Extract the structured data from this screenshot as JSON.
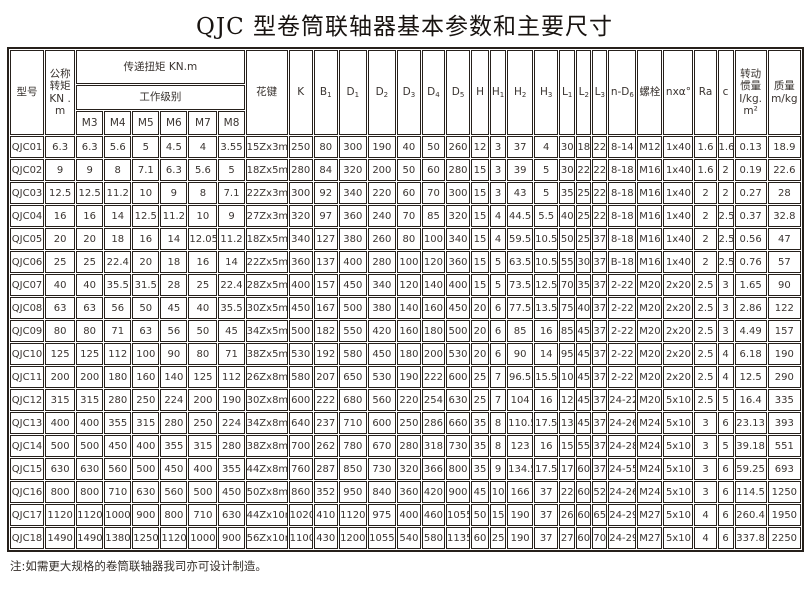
{
  "title": "QJC 型卷筒联轴器基本参数和主要尺寸",
  "note": "注:如需更大规格的卷筒联轴器我司亦可设计制造。",
  "colors": {
    "border": "#26201b",
    "text": "#3a3430",
    "background": "#ffffff"
  },
  "table": {
    "header": {
      "model": "型号",
      "nominal_torque": "公称转矩 KN .m",
      "transmitted_torque": "传递扭矩 KN.m",
      "work_grade": "工作级别",
      "grades": [
        "M3",
        "M4",
        "M5",
        "M6",
        "M7",
        "M8"
      ],
      "dim_columns": [
        {
          "key": "spline",
          "label": "花键"
        },
        {
          "key": "K",
          "label": "K"
        },
        {
          "key": "B1",
          "label": "B_1"
        },
        {
          "key": "D1",
          "label": "D_1"
        },
        {
          "key": "D2",
          "label": "D_2"
        },
        {
          "key": "D3",
          "label": "D_3"
        },
        {
          "key": "D4",
          "label": "D_4"
        },
        {
          "key": "D5",
          "label": "D_5"
        },
        {
          "key": "H",
          "label": "H"
        },
        {
          "key": "H1",
          "label": "H_1"
        },
        {
          "key": "H2",
          "label": "H_2"
        },
        {
          "key": "H3",
          "label": "H_3"
        },
        {
          "key": "L1",
          "label": "L_1"
        },
        {
          "key": "L2",
          "label": "L_2"
        },
        {
          "key": "L3",
          "label": "L_3"
        },
        {
          "key": "nD6",
          "label": "n-D_6"
        },
        {
          "key": "bolt",
          "label": "螺栓"
        },
        {
          "key": "nxa",
          "label": "nxα°"
        },
        {
          "key": "Ra",
          "label": "Ra"
        },
        {
          "key": "c",
          "label": "c"
        }
      ],
      "inertia": "转动惯量 I/kg.m²",
      "mass": "质量 m/kg"
    },
    "rows": [
      [
        "QJC01",
        "6.3",
        "6.3",
        "5.6",
        "5",
        "4.5",
        "4",
        "3.55",
        "15Zx3m",
        "250",
        "80",
        "300",
        "190",
        "40",
        "50",
        "260",
        "12",
        "3",
        "37",
        "4",
        "30",
        "18",
        "22",
        "8-14",
        "M12",
        "1x40",
        "1.6",
        "1.6",
        "0.13",
        "18.9"
      ],
      [
        "QJC02",
        "9",
        "9",
        "8",
        "7.1",
        "6.3",
        "5.6",
        "5",
        "18Zx5m",
        "280",
        "84",
        "320",
        "200",
        "50",
        "60",
        "280",
        "15",
        "3",
        "39",
        "5",
        "30",
        "22",
        "22",
        "8-18",
        "M16",
        "1x40",
        "1.6",
        "2",
        "0.19",
        "22.6"
      ],
      [
        "QJC03",
        "12.5",
        "12.5",
        "11.2",
        "10",
        "9",
        "8",
        "7.1",
        "22Zx3m",
        "300",
        "92",
        "340",
        "220",
        "60",
        "70",
        "300",
        "15",
        "3",
        "43",
        "5",
        "35",
        "25",
        "22",
        "8-18",
        "M16",
        "1x40",
        "2",
        "2",
        "0.27",
        "28"
      ],
      [
        "QJC04",
        "16",
        "16",
        "14",
        "12.5",
        "11.2",
        "10",
        "9",
        "27Zx3m",
        "320",
        "97",
        "360",
        "240",
        "70",
        "85",
        "320",
        "15",
        "4",
        "44.5",
        "5.5",
        "40",
        "25",
        "22",
        "8-18",
        "M16",
        "1x40",
        "2",
        "2.5",
        "0.37",
        "32.8"
      ],
      [
        "QJC05",
        "20",
        "20",
        "18",
        "16",
        "14",
        "12.05",
        "11.2",
        "18Zx5m",
        "340",
        "127",
        "380",
        "260",
        "80",
        "100",
        "340",
        "15",
        "4",
        "59.5",
        "10.5",
        "50",
        "25",
        "37",
        "8-18",
        "M16",
        "1x40",
        "2",
        "2.5",
        "0.56",
        "47"
      ],
      [
        "QJC06",
        "25",
        "25",
        "22.4",
        "20",
        "18",
        "16",
        "14",
        "22Zx5m",
        "360",
        "137",
        "400",
        "280",
        "100",
        "120",
        "360",
        "15",
        "5",
        "63.5",
        "10.5",
        "55",
        "30",
        "37",
        "B-18",
        "M16",
        "1x40",
        "2",
        "2.5",
        "0.76",
        "57"
      ],
      [
        "QJC07",
        "40",
        "40",
        "35.5",
        "31.5",
        "28",
        "25",
        "22.4",
        "28Zx5m",
        "400",
        "157",
        "450",
        "340",
        "120",
        "140",
        "400",
        "15",
        "5",
        "73.5",
        "12.5",
        "70",
        "35",
        "37",
        "2-22",
        "M20",
        "2x20",
        "2.5",
        "3",
        "1.65",
        "90"
      ],
      [
        "QJC08",
        "63",
        "63",
        "56",
        "50",
        "45",
        "40",
        "35.5",
        "30Zx5m",
        "450",
        "167",
        "500",
        "380",
        "140",
        "160",
        "450",
        "20",
        "6",
        "77.5",
        "13.5",
        "75",
        "40",
        "37",
        "2-22",
        "M20",
        "2x20",
        "2.5",
        "3",
        "2.86",
        "122"
      ],
      [
        "QJC09",
        "80",
        "80",
        "71",
        "63",
        "56",
        "50",
        "45",
        "34Zx5m",
        "500",
        "182",
        "550",
        "420",
        "160",
        "180",
        "500",
        "20",
        "6",
        "85",
        "16",
        "85",
        "45",
        "37",
        "2-22",
        "M20",
        "2x20",
        "2.5",
        "3",
        "4.49",
        "157"
      ],
      [
        "QJC10",
        "125",
        "125",
        "112",
        "100",
        "90",
        "80",
        "71",
        "38Zx5m",
        "530",
        "192",
        "580",
        "450",
        "180",
        "200",
        "530",
        "20",
        "6",
        "90",
        "14",
        "95",
        "45",
        "37",
        "2-22",
        "M20",
        "2x20",
        "2.5",
        "4",
        "6.18",
        "190"
      ],
      [
        "QJC11",
        "200",
        "200",
        "180",
        "160",
        "140",
        "125",
        "112",
        "26Zx8m",
        "580",
        "207",
        "650",
        "530",
        "190",
        "222",
        "600",
        "25",
        "7",
        "96.5",
        "15.5",
        "10",
        "45",
        "37",
        "2-22",
        "M20",
        "2x20",
        "2.5",
        "4",
        "12.5",
        "290"
      ],
      [
        "QJC12",
        "315",
        "315",
        "280",
        "250",
        "224",
        "200",
        "190",
        "30Zx8m",
        "600",
        "222",
        "680",
        "560",
        "220",
        "254",
        "630",
        "25",
        "7",
        "104",
        "16",
        "12",
        "45",
        "37",
        "24-22",
        "M20",
        "5x10",
        "2.5",
        "5",
        "16.4",
        "335"
      ],
      [
        "QJC13",
        "400",
        "400",
        "355",
        "315",
        "280",
        "250",
        "224",
        "34Zx8m",
        "640",
        "237",
        "710",
        "600",
        "250",
        "286",
        "660",
        "35",
        "8",
        "110.5",
        "17.5",
        "13",
        "45",
        "37",
        "24-26",
        "M24",
        "5x10",
        "3",
        "6",
        "23.13",
        "393"
      ],
      [
        "QJC14",
        "500",
        "500",
        "450",
        "400",
        "355",
        "315",
        "280",
        "38Zx8m",
        "700",
        "262",
        "780",
        "670",
        "280",
        "318",
        "730",
        "35",
        "8",
        "123",
        "16",
        "15",
        "55",
        "37",
        "24-28",
        "M24",
        "5x10",
        "3",
        "5",
        "39.18",
        "551"
      ],
      [
        "QJC15",
        "630",
        "630",
        "560",
        "500",
        "450",
        "400",
        "355",
        "44Zx8m",
        "760",
        "287",
        "850",
        "730",
        "320",
        "366",
        "800",
        "35",
        "9",
        "134.5",
        "17.5",
        "17",
        "60",
        "37",
        "24-55",
        "M24",
        "5x10",
        "3",
        "6",
        "59.25",
        "693"
      ],
      [
        "QJC16",
        "800",
        "800",
        "710",
        "630",
        "560",
        "500",
        "450",
        "50Zx8m",
        "860",
        "352",
        "950",
        "840",
        "360",
        "420",
        "900",
        "45",
        "10",
        "166",
        "37",
        "22",
        "60",
        "52",
        "24-26",
        "M24",
        "5x10",
        "3",
        "6",
        "114.5",
        "1250"
      ],
      [
        "QJC17",
        "1120",
        "1120",
        "1000",
        "900",
        "800",
        "710",
        "630",
        "44Zx10m",
        "1020",
        "410",
        "1120",
        "975",
        "400",
        "460",
        "1055",
        "50",
        "15",
        "190",
        "37",
        "26",
        "60",
        "65",
        "24-29",
        "M27",
        "5x10",
        "4",
        "6",
        "260.4",
        "1950"
      ],
      [
        "QJC18",
        "1490",
        "1490",
        "1380",
        "1250",
        "1120",
        "1000",
        "900",
        "56Zx10m",
        "1100",
        "430",
        "1200",
        "1055",
        "540",
        "580",
        "1135",
        "60",
        "25",
        "190",
        "37",
        "27",
        "60",
        "70",
        "24-29",
        "M27",
        "5x10",
        "4",
        "6",
        "337.8",
        "2250"
      ]
    ]
  }
}
